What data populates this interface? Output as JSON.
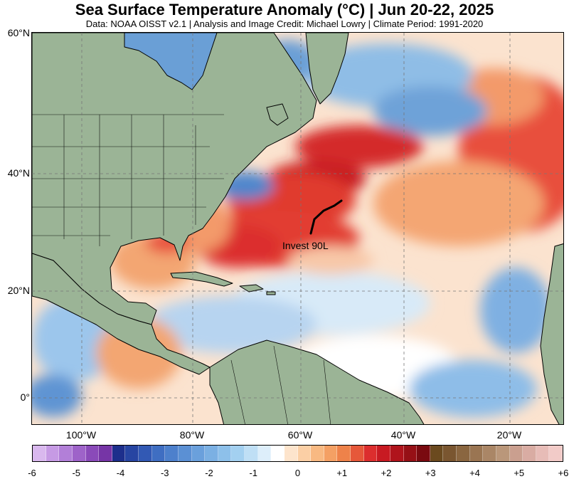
{
  "header": {
    "title": "Sea Surface Temperature Anomaly (°C) | Jun 20-22, 2025",
    "subtitle": "Data: NOAA OISST v2.1 | Analysis and Image Credit: Michael Lowry | Climate Period: 1991-2020"
  },
  "map": {
    "region": "North Atlantic",
    "land_color": "#9bb496",
    "lat_labels": [
      "60°N",
      "40°N",
      "20°N",
      "0°"
    ],
    "lon_labels": [
      "100°W",
      "80°W",
      "60°W",
      "40°W",
      "20°W"
    ],
    "annotation": "Invest 90L"
  },
  "colorbar": {
    "labels": [
      "-6",
      "-5",
      "-4",
      "-3",
      "-2",
      "-1",
      "0",
      "+1",
      "+2",
      "+3",
      "+4",
      "+5",
      "+6"
    ],
    "colors": [
      "#d9b8ee",
      "#c69ae4",
      "#b27fd8",
      "#9e63c9",
      "#8a4ab9",
      "#7635a6",
      "#1d2f8c",
      "#2745a2",
      "#3259b4",
      "#3f6ec2",
      "#4d80cc",
      "#5b90d4",
      "#6aa0dc",
      "#7bb0e3",
      "#8dc0ea",
      "#a3d0f0",
      "#bfdff5",
      "#ddeefa",
      "#ffffff",
      "#fde4cc",
      "#fbcfa5",
      "#f8b982",
      "#f4a064",
      "#ee824a",
      "#e6583a",
      "#dc2e2e",
      "#c81a22",
      "#b0141c",
      "#961016",
      "#7a0a10",
      "#6b4a1f",
      "#7a5630",
      "#8a6640",
      "#9a7552",
      "#aa8666",
      "#ba977a",
      "#ca9f8f",
      "#d9aca3",
      "#e7bcb7",
      "#f2cbc8"
    ]
  }
}
